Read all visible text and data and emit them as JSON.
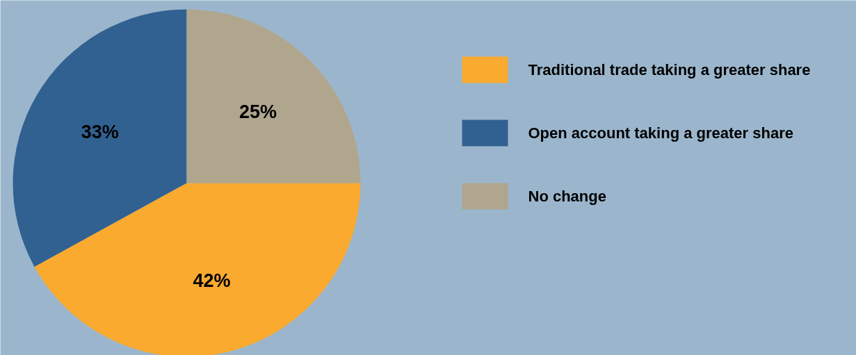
{
  "chart_data": {
    "type": "pie",
    "categories": [
      "Traditional trade taking a greater share",
      "Open account taking a greater share",
      "No change"
    ],
    "values": [
      42,
      33,
      25
    ],
    "colors": [
      "#f9aa2f",
      "#316191",
      "#b0a68e"
    ],
    "value_labels": [
      "42%",
      "33%",
      "25%"
    ],
    "legend": "right"
  }
}
